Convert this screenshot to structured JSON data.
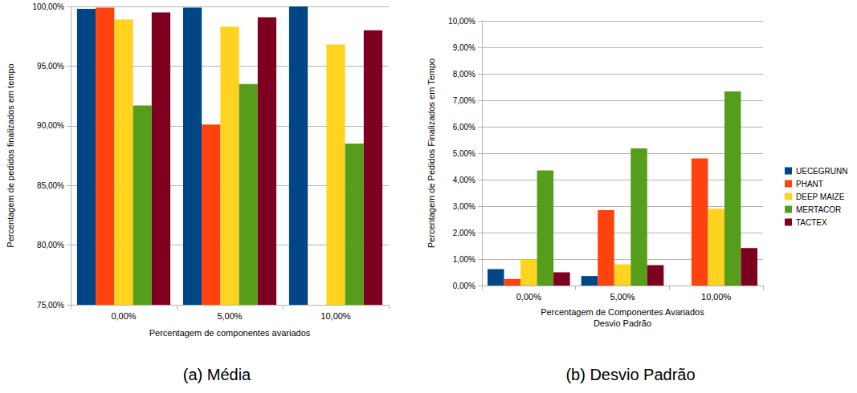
{
  "chart_data": [
    {
      "type": "bar",
      "title": "(a) Média",
      "x_label": "Percentagem de componentes avariados",
      "y_label": "Percentagem de pedidos finalizados em tempo",
      "categories": [
        "0,00%",
        "5,00%",
        "10,00%"
      ],
      "series": [
        {
          "name": "UECEGRUNN",
          "color": "#004586",
          "values": [
            99.8,
            99.9,
            100.0
          ]
        },
        {
          "name": "PHANT",
          "color": "#ff420e",
          "values": [
            99.9,
            90.1,
            null
          ]
        },
        {
          "name": "DEEP MAIZE",
          "color": "#ffd320",
          "values": [
            98.9,
            98.3,
            96.8
          ]
        },
        {
          "name": "MERTACOR",
          "color": "#579d1c",
          "values": [
            91.7,
            93.5,
            88.5
          ]
        },
        {
          "name": "TACTEX",
          "color": "#7e0021",
          "values": [
            99.5,
            99.1,
            98.0
          ]
        }
      ],
      "ylim": [
        75,
        100
      ],
      "yticks": [
        {
          "value": 75,
          "label": "75,00%"
        },
        {
          "value": 80,
          "label": "80,00%"
        },
        {
          "value": 85,
          "label": "85,00%"
        },
        {
          "value": 90,
          "label": "90,00%"
        },
        {
          "value": 95,
          "label": "95,00%"
        },
        {
          "value": 100,
          "label": "100,00%"
        }
      ],
      "grid": true
    },
    {
      "type": "bar",
      "title": "(b) Desvio Padrão",
      "x_label": "Percentagem de Componentes Avariados\nDesvio Padrão",
      "y_label": "Percentagem de Pedidos Finalizados em Tempo",
      "categories": [
        "0,00%",
        "5,00%",
        "10,00%"
      ],
      "series": [
        {
          "name": "UECEGRUNN",
          "color": "#004586",
          "values": [
            0.62,
            0.36,
            0
          ]
        },
        {
          "name": "PHANT",
          "color": "#ff420e",
          "values": [
            0.25,
            2.85,
            4.8
          ]
        },
        {
          "name": "DEEP MAIZE",
          "color": "#ffd320",
          "values": [
            0.97,
            0.8,
            2.9
          ]
        },
        {
          "name": "MERTACOR",
          "color": "#579d1c",
          "values": [
            4.35,
            5.18,
            7.33
          ]
        },
        {
          "name": "TACTEX",
          "color": "#7e0021",
          "values": [
            0.5,
            0.77,
            1.42
          ]
        }
      ],
      "ylim": [
        0,
        10
      ],
      "yticks": [
        {
          "value": 0,
          "label": "0,00%"
        },
        {
          "value": 1,
          "label": "1,00%"
        },
        {
          "value": 2,
          "label": "2,00%"
        },
        {
          "value": 3,
          "label": "3,00%"
        },
        {
          "value": 4,
          "label": "4,00%"
        },
        {
          "value": 5,
          "label": "5,00%"
        },
        {
          "value": 6,
          "label": "6,00%"
        },
        {
          "value": 7,
          "label": "7,00%"
        },
        {
          "value": 8,
          "label": "8,00%"
        },
        {
          "value": 9,
          "label": "9,00%"
        },
        {
          "value": 10,
          "label": "10,00%"
        }
      ],
      "grid": true,
      "legend": "right"
    }
  ]
}
